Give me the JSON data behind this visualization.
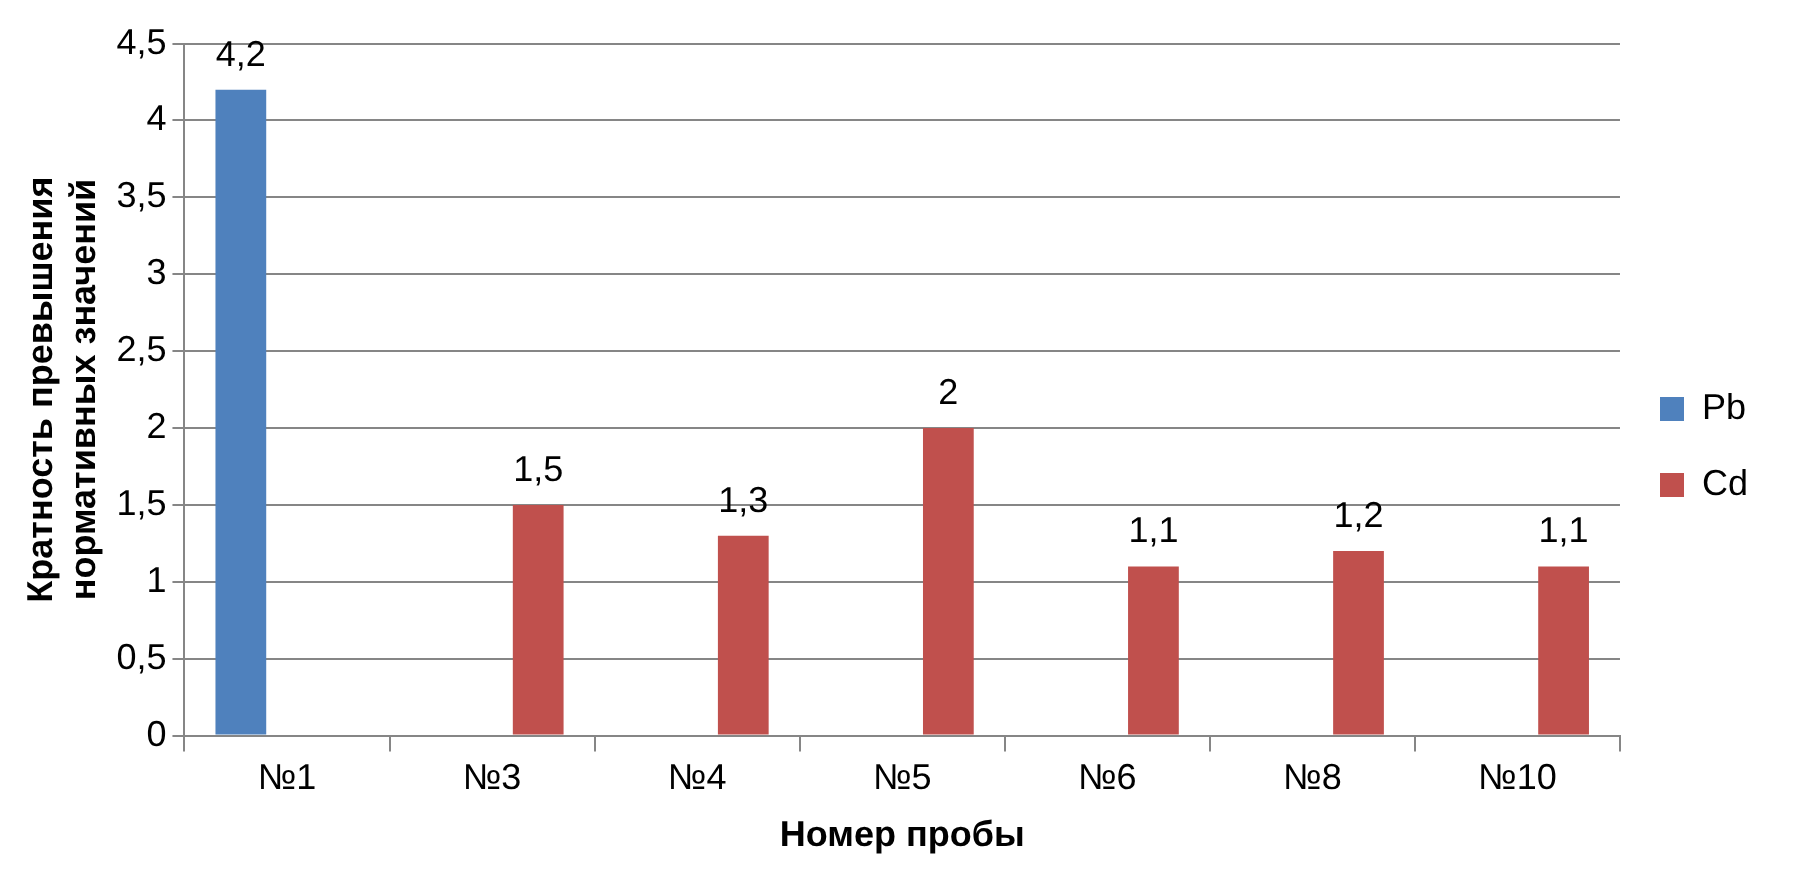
{
  "chart_data": {
    "type": "bar",
    "xlabel": "Номер пробы",
    "ylabel": "Кратность превышения\nнормативных значений",
    "categories": [
      "№1",
      "№3",
      "№4",
      "№5",
      "№6",
      "№8",
      "№10"
    ],
    "series": [
      {
        "name": "Pb",
        "color": "#4f81bd",
        "values": [
          4.2,
          null,
          null,
          null,
          null,
          null,
          null
        ],
        "value_labels": [
          "4,2",
          null,
          null,
          null,
          null,
          null,
          null
        ]
      },
      {
        "name": "Cd",
        "color": "#c0504d",
        "values": [
          null,
          1.5,
          1.3,
          2,
          1.1,
          1.2,
          1.1
        ],
        "value_labels": [
          null,
          "1,5",
          "1,3",
          "2",
          "1,1",
          "1,2",
          "1,1"
        ]
      }
    ],
    "ylim": [
      0,
      4.5
    ],
    "yticks": [
      0,
      {
        "value": 0.5,
        "label": "0,5"
      },
      1,
      {
        "value": 1.5,
        "label": "1,5"
      },
      2,
      {
        "value": 2.5,
        "label": "2,5"
      },
      3,
      {
        "value": 3.5,
        "label": "3,5"
      },
      4,
      {
        "value": 4.5,
        "label": "4,5"
      }
    ],
    "grid": "y",
    "legend": "right"
  }
}
